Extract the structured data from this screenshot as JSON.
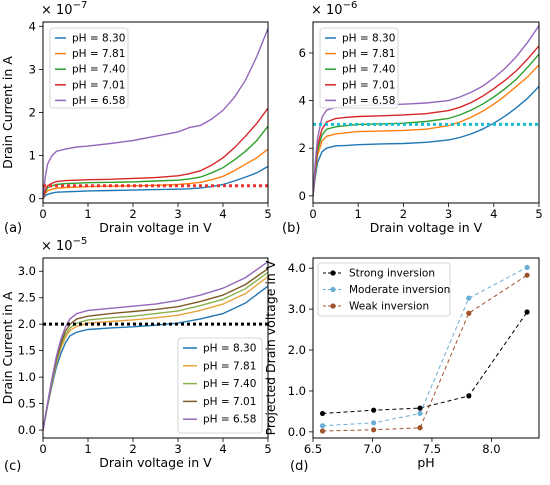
{
  "figure": {
    "panels": [
      {
        "id": "a",
        "label": "(a)",
        "exponent": "× 10",
        "exponent_power": "−7",
        "ylabel": "Drain Current in A",
        "xlabel": "Drain voltage in V"
      },
      {
        "id": "b",
        "label": "(b)",
        "exponent": "× 10",
        "exponent_power": "−6",
        "ylabel": "",
        "xlabel": "Drain voltage in V"
      },
      {
        "id": "c",
        "label": "(c)",
        "exponent": "× 10",
        "exponent_power": "−5",
        "ylabel": "Drain Current in A",
        "xlabel": "Drain voltage in V"
      },
      {
        "id": "d",
        "label": "(d)",
        "exponent": "",
        "exponent_power": "",
        "ylabel": "Projected Drain voltage in V",
        "xlabel": "pH"
      }
    ]
  },
  "chart_data": [
    {
      "id": "a",
      "type": "line",
      "title": "",
      "xlabel": "Drain voltage in V",
      "ylabel": "Drain Current in A",
      "y_multiplier": "1e-7",
      "xlim": [
        0,
        5
      ],
      "ylim": [
        -0.1,
        4.1
      ],
      "xticks": [
        0,
        1,
        2,
        3,
        4,
        5
      ],
      "yticks": [
        0,
        1,
        2,
        3,
        4
      ],
      "legend_position": "top-left",
      "x": [
        0,
        0.05,
        0.1,
        0.2,
        0.3,
        0.5,
        0.75,
        1,
        1.5,
        2,
        2.5,
        3,
        3.25,
        3.5,
        3.75,
        4,
        4.25,
        4.5,
        4.75,
        5
      ],
      "series": [
        {
          "name": "pH = 8.30",
          "color": "#1f77b4",
          "values": [
            0,
            0.07,
            0.1,
            0.13,
            0.15,
            0.16,
            0.17,
            0.18,
            0.19,
            0.2,
            0.21,
            0.22,
            0.23,
            0.25,
            0.28,
            0.33,
            0.41,
            0.5,
            0.6,
            0.75
          ]
        },
        {
          "name": "pH = 7.81",
          "color": "#ff7f0e",
          "values": [
            0,
            0.12,
            0.18,
            0.22,
            0.24,
            0.26,
            0.27,
            0.28,
            0.29,
            0.3,
            0.31,
            0.33,
            0.35,
            0.38,
            0.44,
            0.52,
            0.65,
            0.8,
            0.95,
            1.15
          ]
        },
        {
          "name": "pH = 7.40",
          "color": "#2ca02c",
          "values": [
            0,
            0.16,
            0.25,
            0.3,
            0.33,
            0.35,
            0.36,
            0.37,
            0.38,
            0.39,
            0.41,
            0.43,
            0.46,
            0.5,
            0.6,
            0.72,
            0.9,
            1.1,
            1.35,
            1.68
          ]
        },
        {
          "name": "pH = 7.01",
          "color": "#d62728",
          "values": [
            0,
            0.2,
            0.3,
            0.36,
            0.4,
            0.42,
            0.43,
            0.44,
            0.45,
            0.47,
            0.49,
            0.53,
            0.58,
            0.65,
            0.78,
            0.95,
            1.18,
            1.45,
            1.75,
            2.1
          ]
        },
        {
          "name": "pH = 6.58",
          "color": "#9467bd",
          "values": [
            0,
            0.5,
            0.8,
            1.0,
            1.1,
            1.15,
            1.2,
            1.22,
            1.28,
            1.35,
            1.45,
            1.55,
            1.65,
            1.7,
            1.85,
            2.05,
            2.35,
            2.75,
            3.3,
            3.95
          ]
        }
      ],
      "reference_line": {
        "value": 0.3,
        "color": "#ee3333"
      }
    },
    {
      "id": "b",
      "type": "line",
      "title": "",
      "xlabel": "Drain voltage in V",
      "ylabel": "",
      "y_multiplier": "1e-6",
      "xlim": [
        0,
        5
      ],
      "ylim": [
        -0.3,
        7.3
      ],
      "xticks": [
        0,
        1,
        2,
        3,
        4,
        5
      ],
      "yticks": [
        0,
        2,
        4,
        6
      ],
      "legend_position": "top-left",
      "x": [
        0,
        0.05,
        0.1,
        0.2,
        0.3,
        0.5,
        0.75,
        1,
        1.5,
        2,
        2.5,
        3,
        3.25,
        3.5,
        3.75,
        4,
        4.25,
        4.5,
        4.75,
        5
      ],
      "series": [
        {
          "name": "pH = 8.30",
          "color": "#1f77b4",
          "values": [
            0,
            0.8,
            1.4,
            1.85,
            2.0,
            2.1,
            2.12,
            2.15,
            2.18,
            2.2,
            2.25,
            2.35,
            2.45,
            2.6,
            2.8,
            3.05,
            3.35,
            3.7,
            4.1,
            4.6
          ]
        },
        {
          "name": "pH = 7.81",
          "color": "#ff7f0e",
          "values": [
            0,
            1.0,
            1.7,
            2.3,
            2.5,
            2.6,
            2.65,
            2.7,
            2.72,
            2.75,
            2.8,
            2.95,
            3.1,
            3.3,
            3.55,
            3.85,
            4.2,
            4.6,
            5.0,
            5.5
          ]
        },
        {
          "name": "pH = 7.40",
          "color": "#2ca02c",
          "values": [
            0,
            1.1,
            1.9,
            2.55,
            2.8,
            2.9,
            2.95,
            3.0,
            3.02,
            3.05,
            3.12,
            3.25,
            3.4,
            3.6,
            3.85,
            4.15,
            4.5,
            4.9,
            5.4,
            5.95
          ]
        },
        {
          "name": "pH = 7.01",
          "color": "#d62728",
          "values": [
            0,
            1.2,
            2.1,
            2.8,
            3.1,
            3.25,
            3.3,
            3.33,
            3.36,
            3.4,
            3.45,
            3.58,
            3.72,
            3.92,
            4.18,
            4.5,
            4.85,
            5.25,
            5.75,
            6.3
          ]
        },
        {
          "name": "pH = 6.58",
          "color": "#9467bd",
          "values": [
            0,
            1.4,
            2.4,
            3.3,
            3.6,
            3.72,
            3.76,
            3.8,
            3.82,
            3.85,
            3.9,
            4.0,
            4.15,
            4.35,
            4.6,
            4.95,
            5.35,
            5.85,
            6.45,
            7.15
          ]
        }
      ],
      "reference_line": {
        "value": 3.0,
        "color": "#17becf"
      }
    },
    {
      "id": "c",
      "type": "line",
      "title": "",
      "xlabel": "Drain voltage in V",
      "ylabel": "Drain Current in A",
      "y_multiplier": "1e-5",
      "xlim": [
        0,
        5
      ],
      "ylim": [
        -0.15,
        3.25
      ],
      "xticks": [
        0,
        1,
        2,
        3,
        4,
        5
      ],
      "yticks": [
        0.0,
        0.5,
        1.0,
        1.5,
        2.0,
        2.5,
        3.0
      ],
      "legend_position": "bottom-right",
      "x": [
        0,
        0.1,
        0.2,
        0.3,
        0.4,
        0.5,
        0.6,
        0.75,
        1,
        1.5,
        2,
        2.5,
        3,
        3.5,
        4,
        4.5,
        5
      ],
      "series": [
        {
          "name": "pH = 8.30",
          "color": "#1f77b4",
          "values": [
            0,
            0.45,
            0.85,
            1.2,
            1.45,
            1.65,
            1.78,
            1.85,
            1.9,
            1.93,
            1.95,
            1.98,
            2.02,
            2.1,
            2.2,
            2.4,
            2.72
          ]
        },
        {
          "name": "pH = 7.81",
          "color": "#e8a33d",
          "values": [
            0,
            0.47,
            0.9,
            1.27,
            1.55,
            1.75,
            1.88,
            1.96,
            2.02,
            2.05,
            2.08,
            2.12,
            2.17,
            2.26,
            2.38,
            2.58,
            2.9
          ]
        },
        {
          "name": "pH = 7.40",
          "color": "#8ab04a",
          "values": [
            0,
            0.48,
            0.92,
            1.3,
            1.6,
            1.8,
            1.93,
            2.02,
            2.08,
            2.12,
            2.15,
            2.2,
            2.25,
            2.35,
            2.47,
            2.67,
            2.98
          ]
        },
        {
          "name": "pH = 7.01",
          "color": "#7d5a2a",
          "values": [
            0,
            0.49,
            0.95,
            1.35,
            1.65,
            1.87,
            2.0,
            2.1,
            2.15,
            2.2,
            2.24,
            2.28,
            2.33,
            2.43,
            2.55,
            2.75,
            3.05
          ]
        },
        {
          "name": "pH = 6.58",
          "color": "#9467bd",
          "values": [
            0,
            0.5,
            0.98,
            1.4,
            1.72,
            1.95,
            2.1,
            2.2,
            2.26,
            2.3,
            2.34,
            2.38,
            2.45,
            2.55,
            2.68,
            2.88,
            3.18
          ]
        }
      ],
      "reference_line": {
        "value": 2.0,
        "color": "#000000"
      }
    },
    {
      "id": "d",
      "type": "line",
      "title": "",
      "xlabel": "pH",
      "ylabel": "Projected Drain voltage in V",
      "xlim": [
        6.5,
        8.4
      ],
      "ylim": [
        -0.15,
        4.25
      ],
      "xticks": [
        6.5,
        7.0,
        7.5,
        8.0
      ],
      "yticks": [
        0,
        1,
        2,
        3,
        4
      ],
      "legend_position": "top-left",
      "x": [
        6.58,
        7.01,
        7.4,
        7.81,
        8.3
      ],
      "series": [
        {
          "name": "Strong inversion",
          "color": "#000000",
          "values": [
            0.45,
            0.53,
            0.58,
            0.88,
            2.93
          ]
        },
        {
          "name": "Moderate inversion",
          "color": "#6baed6",
          "values": [
            0.15,
            0.22,
            0.45,
            3.27,
            4.02
          ]
        },
        {
          "name": "Weak inversion",
          "color": "#a0522d",
          "values": [
            0.02,
            0.05,
            0.1,
            2.9,
            3.83
          ]
        }
      ]
    }
  ]
}
